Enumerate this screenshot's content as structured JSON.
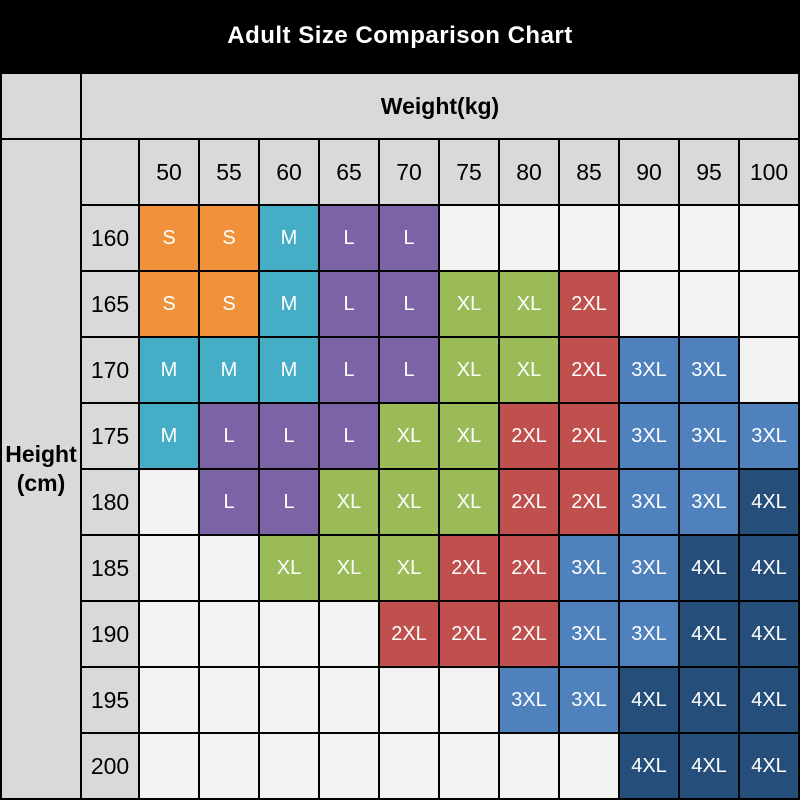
{
  "title": "Adult Size Comparison Chart",
  "chart_data": {
    "type": "heatmap",
    "title": "Adult Size Comparison Chart",
    "xlabel": "Weight(kg)",
    "ylabel": "Height (cm)",
    "ylabel_lines": [
      "Height",
      "(cm)"
    ],
    "x": [
      "50",
      "55",
      "60",
      "65",
      "70",
      "75",
      "80",
      "85",
      "90",
      "95",
      "100"
    ],
    "y": [
      "160",
      "165",
      "170",
      "175",
      "180",
      "185",
      "190",
      "195",
      "200"
    ],
    "values": [
      [
        "S",
        "S",
        "M",
        "L",
        "L",
        "",
        "",
        "",
        "",
        "",
        ""
      ],
      [
        "S",
        "S",
        "M",
        "L",
        "L",
        "XL",
        "XL",
        "2XL",
        "",
        "",
        ""
      ],
      [
        "M",
        "M",
        "M",
        "L",
        "L",
        "XL",
        "XL",
        "2XL",
        "3XL",
        "3XL",
        ""
      ],
      [
        "M",
        "L",
        "L",
        "L",
        "XL",
        "XL",
        "2XL",
        "2XL",
        "3XL",
        "3XL",
        "3XL"
      ],
      [
        "",
        "L",
        "L",
        "XL",
        "XL",
        "XL",
        "2XL",
        "2XL",
        "3XL",
        "3XL",
        "4XL"
      ],
      [
        "",
        "",
        "XL",
        "XL",
        "XL",
        "2XL",
        "2XL",
        "3XL",
        "3XL",
        "4XL",
        "4XL"
      ],
      [
        "",
        "",
        "",
        "",
        "2XL",
        "2XL",
        "2XL",
        "3XL",
        "3XL",
        "4XL",
        "4XL"
      ],
      [
        "",
        "",
        "",
        "",
        "",
        "",
        "3XL",
        "3XL",
        "4XL",
        "4XL",
        "4XL"
      ],
      [
        "",
        "",
        "",
        "",
        "",
        "",
        "",
        "",
        "4XL",
        "4XL",
        "4XL"
      ]
    ],
    "legend_position": "none",
    "grid": true
  },
  "colors": {
    "background": "#000000",
    "title_text": "#FFFFFF",
    "header_bg": "#D9D9D9",
    "header_text": "#000000",
    "empty_cell_bg": "#F2F2F2",
    "cell_text": "#FFFFFF",
    "gridline": "#000000",
    "sizes": {
      "S": "#F0913C",
      "M": "#45ADC5",
      "L": "#7B63A6",
      "XL": "#9BBB59",
      "2XL": "#C0504D",
      "3XL": "#4F81BD",
      "4XL": "#254E7B"
    }
  }
}
